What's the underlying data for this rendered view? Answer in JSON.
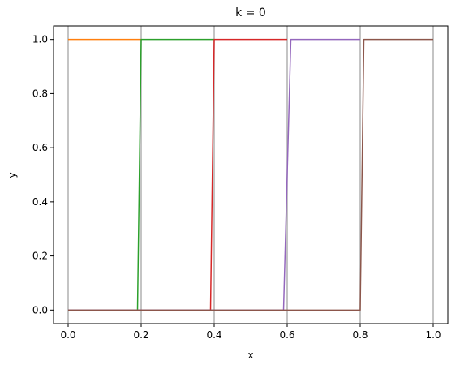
{
  "chart_data": {
    "type": "line",
    "title": "k = 0",
    "xlabel": "x",
    "ylabel": "y",
    "xlim": [
      -0.04,
      1.04
    ],
    "ylim": [
      -0.05,
      1.05
    ],
    "xticks": [
      0.0,
      0.2,
      0.4,
      0.6,
      0.8,
      1.0
    ],
    "yticks": [
      0.0,
      0.2,
      0.4,
      0.6,
      0.8,
      1.0
    ],
    "xtick_labels": [
      "0.0",
      "0.2",
      "0.4",
      "0.6",
      "0.8",
      "1.0"
    ],
    "ytick_labels": [
      "0.0",
      "0.2",
      "0.4",
      "0.6",
      "0.8",
      "1.0"
    ],
    "vertical_gridlines_at": [
      0.0,
      0.2,
      0.4,
      0.6,
      0.8,
      1.0
    ],
    "legend": "none",
    "series": [
      {
        "color": "#1f77b4",
        "x": [
          0.0,
          0.2
        ],
        "y": [
          0.0,
          0.0
        ]
      },
      {
        "color": "#ff7f0e",
        "x": [
          0.0,
          0.2
        ],
        "y": [
          1.0,
          1.0
        ]
      },
      {
        "color": "#2ca02c",
        "x": [
          0.0,
          0.19,
          0.2,
          0.4
        ],
        "y": [
          0.0,
          0.0,
          1.0,
          1.0
        ]
      },
      {
        "color": "#d62728",
        "x": [
          0.0,
          0.39,
          0.4,
          0.6
        ],
        "y": [
          0.0,
          0.0,
          1.0,
          1.0
        ]
      },
      {
        "color": "#9467bd",
        "x": [
          0.0,
          0.59,
          0.61,
          0.8
        ],
        "y": [
          0.0,
          0.0,
          1.0,
          1.0
        ]
      },
      {
        "color": "#8c564b",
        "x": [
          0.0,
          0.8,
          0.81,
          1.0
        ],
        "y": [
          0.0,
          0.0,
          1.0,
          1.0
        ]
      }
    ]
  }
}
